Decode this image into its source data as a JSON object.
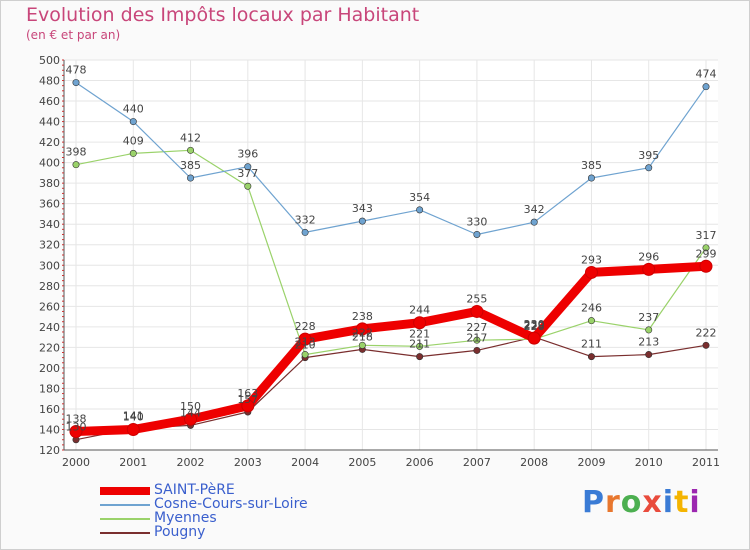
{
  "title": "Evolution des Impôts locaux par Habitant",
  "subtitle": "(en € et par an)",
  "logo": {
    "text": "Proxiti",
    "colors": [
      "#3a7bd5",
      "#e8772e",
      "#4caf50",
      "#e94b3c",
      "#3a7bd5",
      "#f4b400",
      "#9c27b0"
    ]
  },
  "chart_data": {
    "type": "line",
    "title": "Evolution des Impôts locaux par Habitant",
    "subtitle": "(en € et par an)",
    "xlabel": "",
    "ylabel": "",
    "ylim": [
      120,
      500
    ],
    "yticks": [
      120,
      140,
      160,
      180,
      200,
      220,
      240,
      260,
      280,
      300,
      320,
      340,
      360,
      380,
      400,
      420,
      440,
      460,
      480,
      500
    ],
    "categories": [
      "2000",
      "2001",
      "2002",
      "2003",
      "2004",
      "2005",
      "2006",
      "2007",
      "2008",
      "2009",
      "2010",
      "2011"
    ],
    "grid": true,
    "series": [
      {
        "name": "SAINT-PèRE",
        "color": "#ee0000",
        "values": [
          138,
          140,
          150,
          163,
          228,
          238,
          244,
          255,
          229,
          293,
          296,
          299
        ]
      },
      {
        "name": "Cosne-Cours-sur-Loire",
        "color": "#6fa3d0",
        "values": [
          478,
          440,
          385,
          396,
          332,
          343,
          354,
          330,
          342,
          385,
          395,
          474
        ]
      },
      {
        "name": "Myennes",
        "color": "#9ad26a",
        "values": [
          398,
          409,
          412,
          377,
          213,
          222,
          221,
          227,
          228,
          246,
          237,
          317
        ]
      },
      {
        "name": "Pougny",
        "color": "#7a2e2e",
        "values": [
          130,
          141,
          144,
          157,
          210,
          218,
          211,
          217,
          230,
          211,
          213,
          222
        ]
      }
    ]
  }
}
